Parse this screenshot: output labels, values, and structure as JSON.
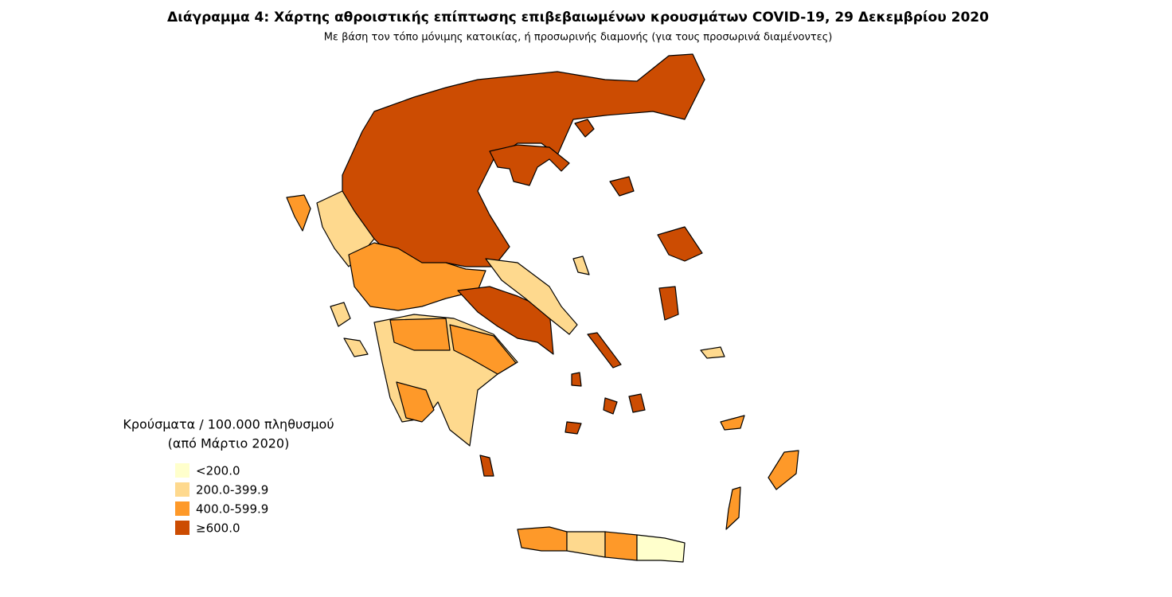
{
  "title": "Διάγραμμα 4: Χάρτης αθροιστικής επίπτωσης επιβεβαιωμένων κρουσμάτων COVID-19, 29 Δεκεμβρίου 2020",
  "subtitle": "Με βάση τον τόπο μόνιμης κατοικίας, ή προσωρινής διαμονής (για τους προσωρινά διαμένοντες)",
  "legend": {
    "title": [
      "Κρούσματα / 100.000 πληθυσμού",
      "(από Μάρτιο 2020)"
    ],
    "items": [
      {
        "label": "<200.0",
        "color": "#ffffcc"
      },
      {
        "label": "200.0-399.9",
        "color": "#fed98e"
      },
      {
        "label": "400.0-599.9",
        "color": "#fe9929"
      },
      {
        "label": "≥600.0",
        "color": "#cc4c02"
      }
    ]
  }
}
